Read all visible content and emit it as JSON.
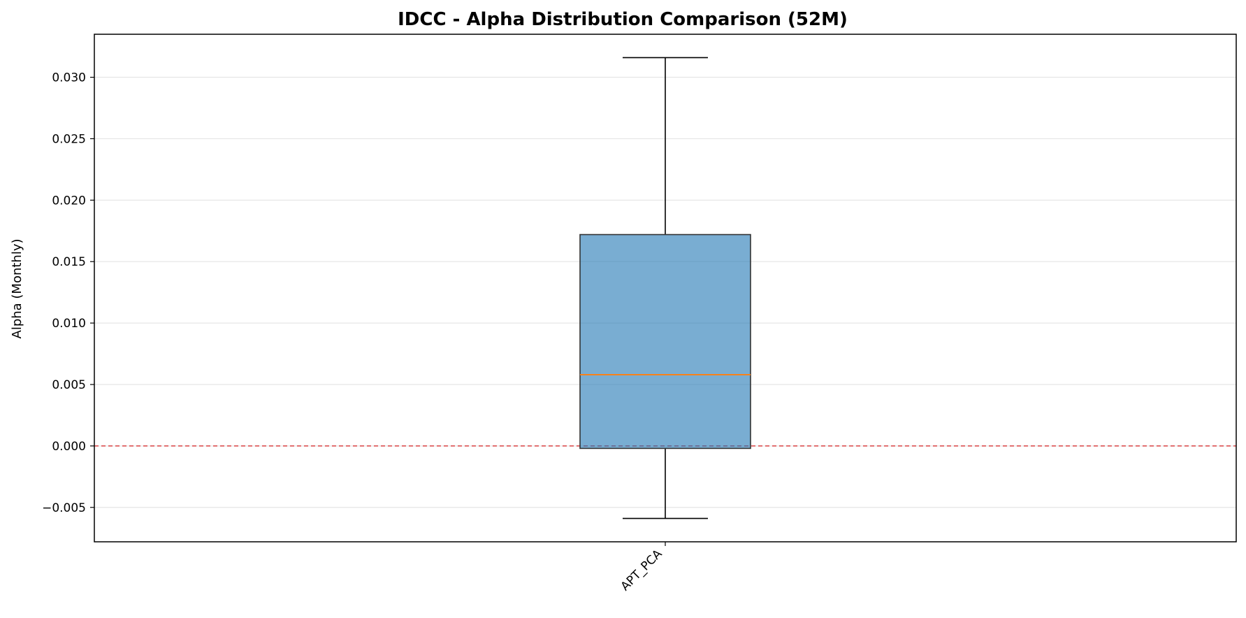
{
  "chart_data": {
    "type": "box",
    "title": "IDCC - Alpha Distribution Comparison (52M)",
    "xlabel": "",
    "ylabel": "Alpha (Monthly)",
    "ylim": [
      -0.0078,
      0.0335
    ],
    "yticks": [
      -0.005,
      0.0,
      0.005,
      0.01,
      0.015,
      0.02,
      0.025,
      0.03
    ],
    "ytick_labels": [
      "−0.005",
      "0.000",
      "0.005",
      "0.010",
      "0.015",
      "0.020",
      "0.025",
      "0.030"
    ],
    "categories": [
      "APT_PCA"
    ],
    "boxes": [
      {
        "category": "APT_PCA",
        "whisker_low": -0.0059,
        "q1": -0.0002,
        "median": 0.0058,
        "q3": 0.0172,
        "whisker_high": 0.0316
      }
    ],
    "reference_line": {
      "y": 0.0,
      "color": "#d62728",
      "style": "dashed"
    },
    "grid": "y",
    "colors": {
      "box_fill": "#1f77b4",
      "median": "#ff7f0e",
      "whisker": "#000000"
    }
  }
}
